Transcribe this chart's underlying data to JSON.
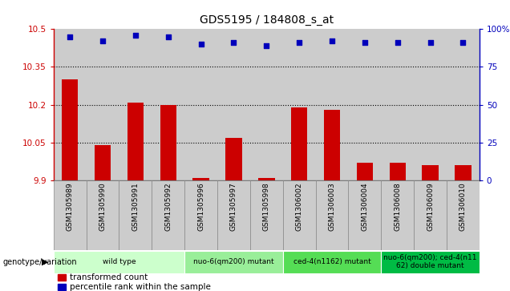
{
  "title": "GDS5195 / 184808_s_at",
  "samples": [
    "GSM1305989",
    "GSM1305990",
    "GSM1305991",
    "GSM1305992",
    "GSM1305996",
    "GSM1305997",
    "GSM1305998",
    "GSM1306002",
    "GSM1306003",
    "GSM1306004",
    "GSM1306008",
    "GSM1306009",
    "GSM1306010"
  ],
  "bar_values": [
    10.3,
    10.04,
    10.21,
    10.2,
    9.91,
    10.07,
    9.91,
    10.19,
    10.18,
    9.97,
    9.97,
    9.96,
    9.96
  ],
  "percentile_values": [
    95,
    92,
    96,
    95,
    90,
    91,
    89,
    91,
    92,
    91,
    91,
    91,
    91
  ],
  "bar_color": "#cc0000",
  "percentile_color": "#0000bb",
  "ylim": [
    9.9,
    10.5
  ],
  "y2lim": [
    0,
    100
  ],
  "yticks": [
    9.9,
    10.05,
    10.2,
    10.35,
    10.5
  ],
  "y2ticks": [
    0,
    25,
    50,
    75,
    100
  ],
  "ytick_labels": [
    "9.9",
    "10.05",
    "10.2",
    "10.35",
    "10.5"
  ],
  "y2tick_labels": [
    "0",
    "25",
    "50",
    "75",
    "100%"
  ],
  "hlines": [
    10.05,
    10.2,
    10.35
  ],
  "groups": [
    {
      "label": "wild type",
      "indices": [
        0,
        1,
        2,
        3
      ],
      "color": "#ccffcc"
    },
    {
      "label": "nuo-6(qm200) mutant",
      "indices": [
        4,
        5,
        6
      ],
      "color": "#99ee99"
    },
    {
      "label": "ced-4(n1162) mutant",
      "indices": [
        7,
        8,
        9
      ],
      "color": "#55dd55"
    },
    {
      "label": "nuo-6(qm200); ced-4(n11\n62) double mutant",
      "indices": [
        10,
        11,
        12
      ],
      "color": "#00bb44"
    }
  ],
  "group_label_prefix": "genotype/variation",
  "legend_bar_label": "transformed count",
  "legend_dot_label": "percentile rank within the sample",
  "bar_bottom": 9.9,
  "plot_bg": "#cccccc",
  "cell_bg": "#cccccc",
  "cell_border": "#888888"
}
